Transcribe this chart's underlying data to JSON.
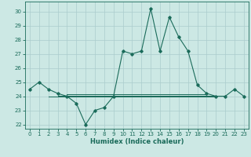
{
  "xlabel": "Humidex (Indice chaleur)",
  "ylabel": "",
  "bg_color": "#cce8e4",
  "grid_color": "#aacccc",
  "line_color": "#1a6b5a",
  "xlim": [
    -0.5,
    23.5
  ],
  "ylim": [
    21.7,
    30.7
  ],
  "yticks": [
    22,
    23,
    24,
    25,
    26,
    27,
    28,
    29,
    30
  ],
  "xticks": [
    0,
    1,
    2,
    3,
    4,
    5,
    6,
    7,
    8,
    9,
    10,
    11,
    12,
    13,
    14,
    15,
    16,
    17,
    18,
    19,
    20,
    21,
    22,
    23
  ],
  "series_main": [
    24.5,
    25.0,
    24.5,
    24.2,
    24.0,
    23.5,
    22.0,
    23.0,
    23.2,
    24.0,
    27.2,
    27.0,
    27.2,
    30.2,
    27.2,
    29.6,
    28.2,
    27.2,
    24.8,
    24.2,
    24.0,
    24.0,
    24.5,
    24.0
  ],
  "series_flat1": [
    24.0,
    24.0,
    24.0,
    24.0,
    24.0,
    24.0,
    24.0,
    24.0,
    24.0,
    24.0,
    24.0,
    24.0,
    24.0,
    24.0,
    24.0,
    24.0,
    24.0,
    24.0,
    24.0
  ],
  "series_flat2": [
    24.05,
    24.05,
    24.05,
    24.05,
    24.05,
    24.05,
    24.05,
    24.05,
    24.05,
    24.05,
    24.05,
    24.05,
    24.05,
    24.05,
    24.05,
    24.05,
    24.05,
    24.05,
    24.05
  ],
  "series_flat3": [
    24.12,
    24.12,
    24.12,
    24.12,
    24.12,
    24.12,
    24.12,
    24.12,
    24.12,
    24.12,
    24.12,
    24.12,
    24.12,
    24.12,
    24.12,
    24.12
  ],
  "flat1_xstart": 2,
  "flat2_xstart": 3,
  "flat3_xstart": 4
}
